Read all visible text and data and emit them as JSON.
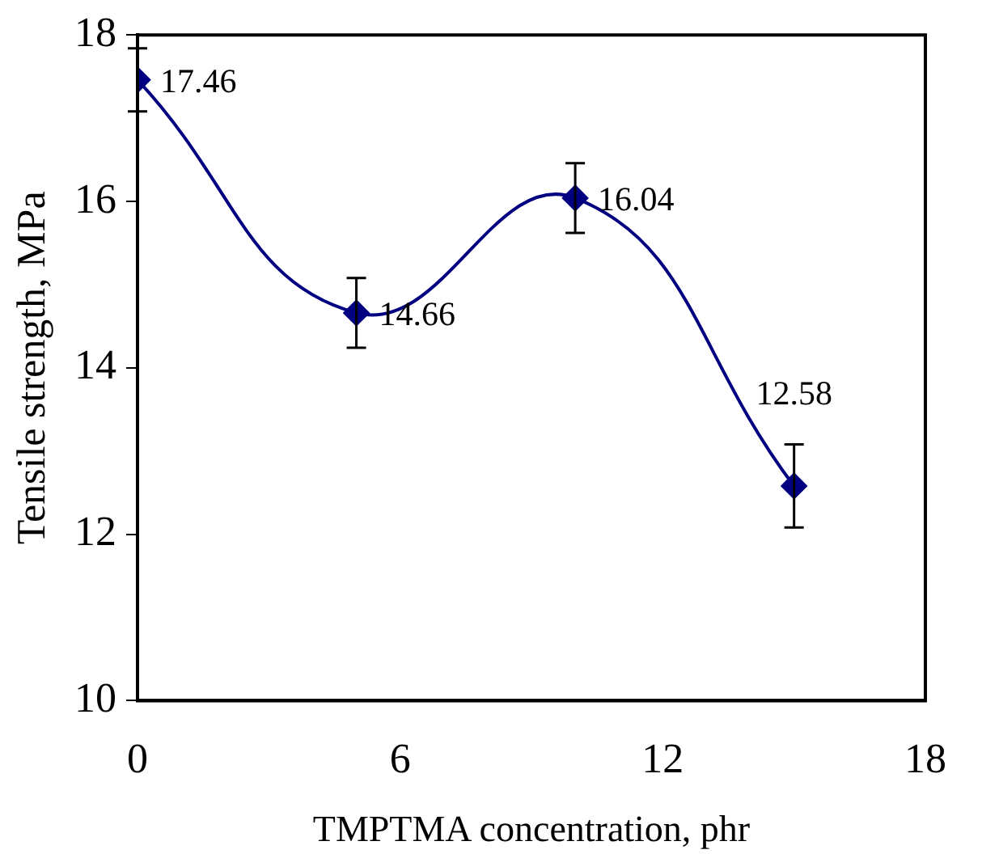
{
  "chart_data": {
    "type": "line",
    "xlabel": "TMPTMA concentration, phr",
    "ylabel": "Tensile strength, MPa",
    "x": [
      0,
      5,
      10,
      15
    ],
    "series": [
      {
        "color": "#000080",
        "values": [
          17.46,
          14.66,
          16.04,
          12.58
        ],
        "errors": [
          0.38,
          0.42,
          0.42,
          0.5
        ]
      }
    ],
    "xlim": [
      0,
      18
    ],
    "xticks": [
      0,
      6,
      12,
      18
    ],
    "ylim": [
      10,
      18
    ],
    "yticks": [
      10,
      12,
      14,
      16,
      18
    ],
    "grid": false,
    "legend": false,
    "marker": "diamond",
    "line_style": "solid",
    "data_labels": true
  }
}
